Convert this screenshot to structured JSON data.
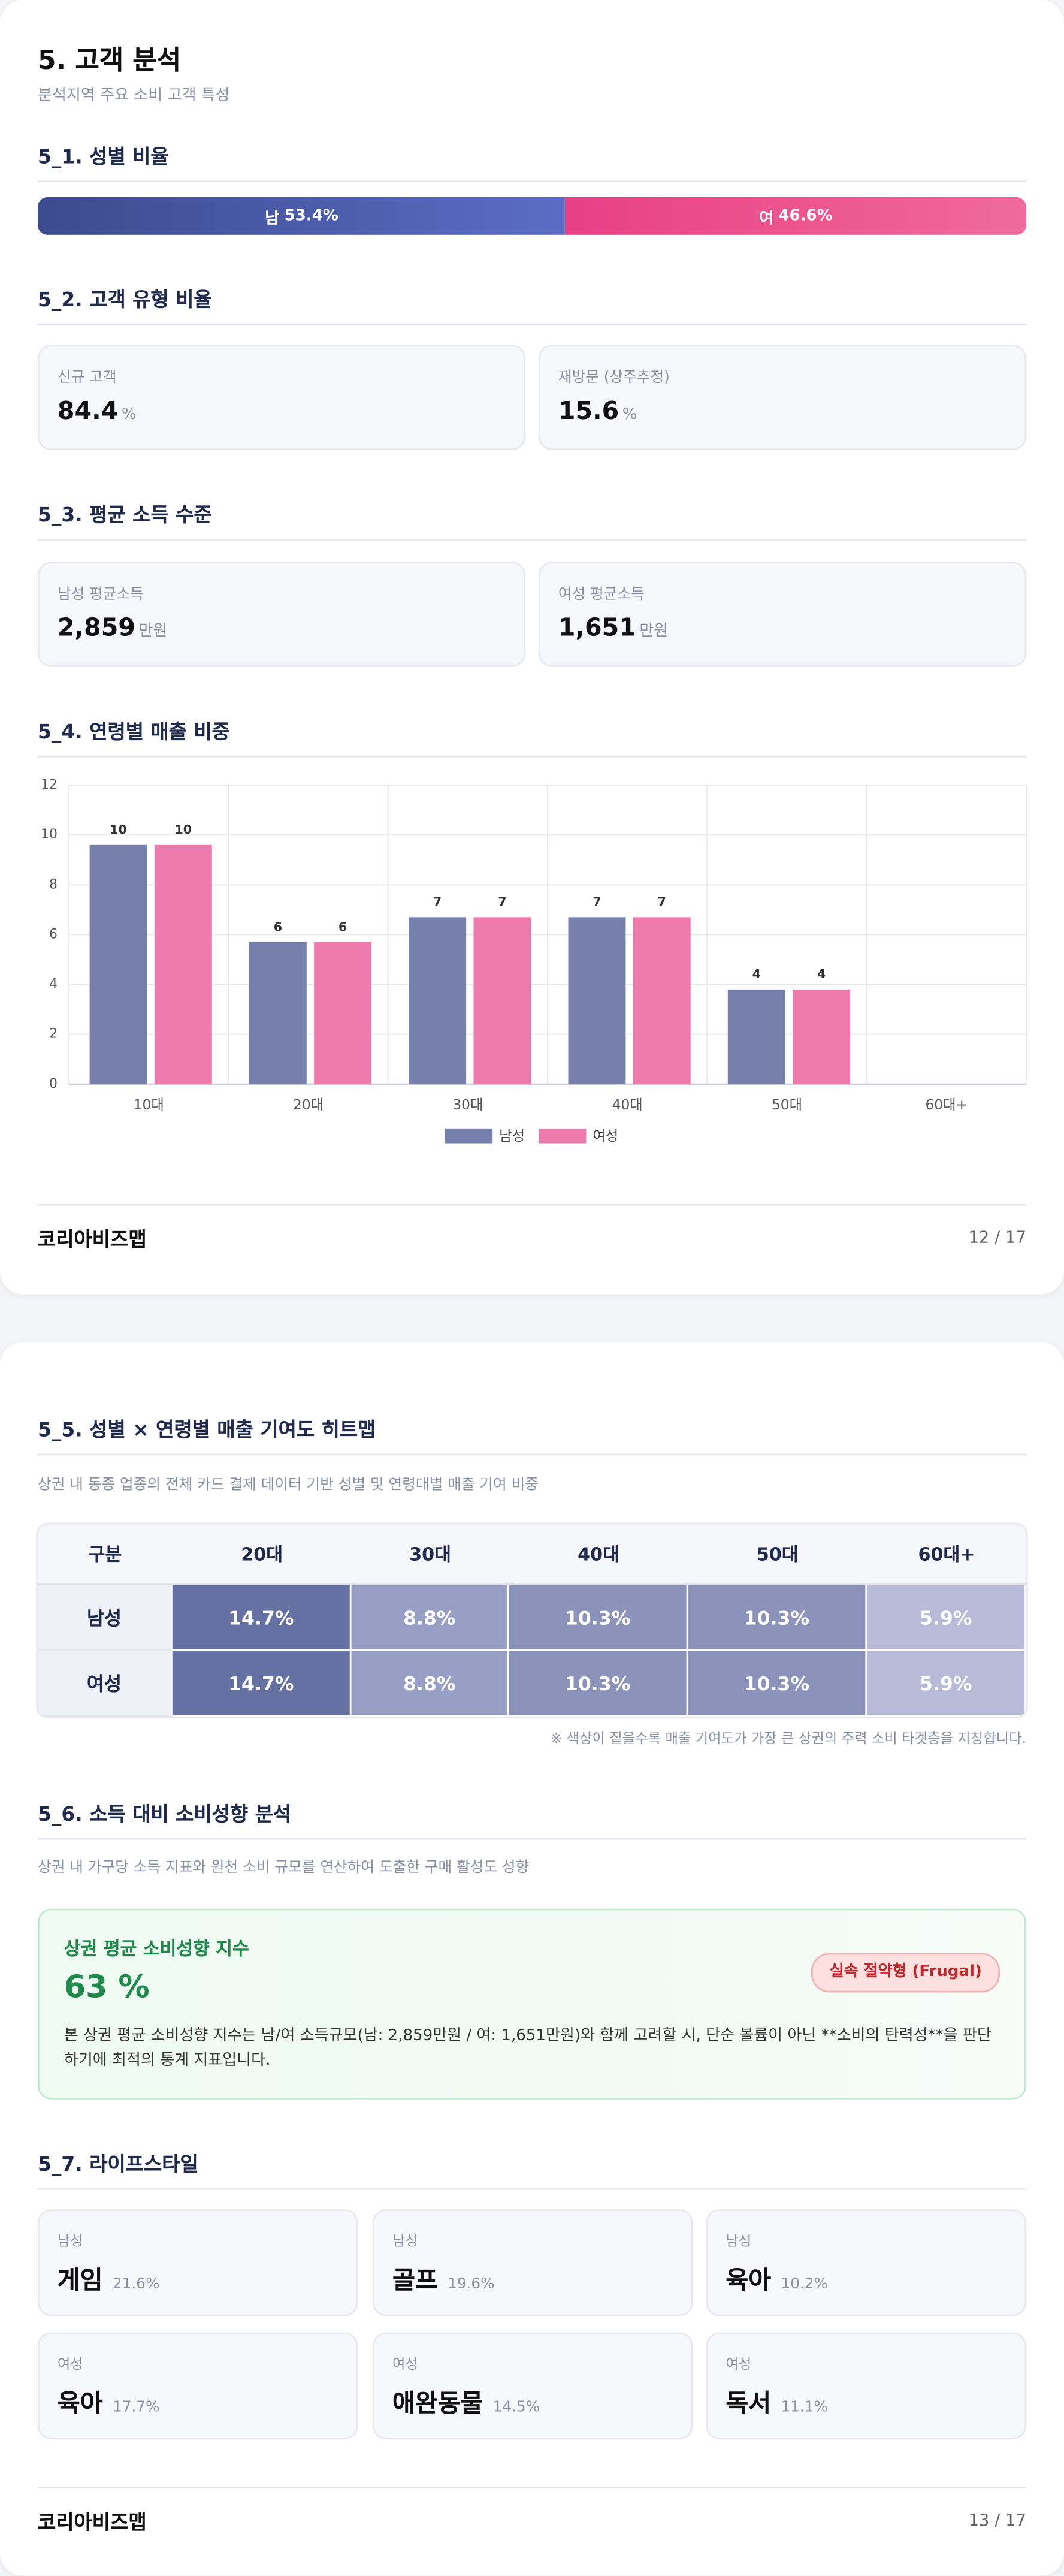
{
  "page1": {
    "title": "5. 고객 분석",
    "subtitle": "분석지역 주요 소비 고객 특성",
    "gender_section": {
      "heading": "5_1. 성별 비율",
      "segments": [
        {
          "label": "남",
          "value": 53.4,
          "value_label": "53.4%"
        },
        {
          "label": "여",
          "value": 46.6,
          "value_label": "46.6%"
        }
      ]
    },
    "customer_type": {
      "heading": "5_2. 고객 유형 비율",
      "cards": [
        {
          "label": "신규 고객",
          "value": 84.4,
          "unit": "%"
        },
        {
          "label": "재방문 (상주추정)",
          "value": 15.6,
          "unit": "%"
        }
      ]
    },
    "income": {
      "heading": "5_3. 평균 소득 수준",
      "cards": [
        {
          "label": "남성 평균소득",
          "value": "2,859",
          "unit": "만원"
        },
        {
          "label": "여성 평균소득",
          "value": "1,651",
          "unit": "만원"
        }
      ]
    },
    "chart_heading": "5_4. 연령별 매출 비중",
    "footer": {
      "brand": "코리아비즈맵",
      "page": "12 / 17"
    }
  },
  "chart_data": {
    "type": "bar",
    "categories": [
      "10대",
      "20대",
      "30대",
      "40대",
      "50대",
      "60대+"
    ],
    "series": [
      {
        "name": "남성",
        "color": "#7780ad",
        "values": [
          9.6,
          5.7,
          6.7,
          6.7,
          3.8,
          null
        ],
        "value_labels": [
          "10",
          "6",
          "7",
          "7",
          "4",
          null
        ]
      },
      {
        "name": "여성",
        "color": "#ec7aaa",
        "values": [
          9.6,
          5.7,
          6.7,
          6.7,
          3.8,
          null
        ],
        "value_labels": [
          "10",
          "6",
          "7",
          "7",
          "4",
          null
        ]
      }
    ],
    "ylim": [
      0,
      12
    ],
    "yticks": [
      0,
      2,
      4,
      6,
      8,
      10,
      12
    ],
    "grid": true,
    "legend": "bottom"
  },
  "page2": {
    "heatmap": {
      "heading": "5_5. 성별 × 연령별 매출 기여도 히트맵",
      "subtitle": "상권 내 동종 업종의 전체 카드 결제 데이터 기반 성별 및 연령대별 매출 기여 비중",
      "columns": [
        "구분",
        "20대",
        "30대",
        "40대",
        "50대",
        "60대+"
      ],
      "rows": [
        [
          "남성",
          "14.7%",
          "8.8%",
          "10.3%",
          "10.3%",
          "5.9%"
        ],
        [
          "여성",
          "14.7%",
          "8.8%",
          "10.3%",
          "10.3%",
          "5.9%"
        ]
      ],
      "note": "※ 색상이 짙을수록 매출 기여도가 가장 큰 상권의 주력 소비 타겟층을 지칭합니다."
    },
    "propensity": {
      "heading": "5_6. 소득 대비 소비성향 분석",
      "subtitle": "상권 내 가구당 소득 지표와 원천 소비 규모를 연산하여 도출한 구매 활성도 성향",
      "card_title": "상권 평균 소비성향 지수",
      "index": "63 %",
      "badge": "실속 절약형 (Frugal)",
      "description": "본 상권 평균 소비성향 지수는 남/여 소득규모(남: 2,859만원 / 여: 1,651만원)와 함께 고려할 시, 단순 볼륨이 아닌 **소비의 탄력성**을 판단하기에 최적의 통계 지표입니다."
    },
    "lifestyle": {
      "heading": "5_7. 라이프스타일",
      "items": [
        {
          "gender": "남성",
          "name": "게임",
          "share": "21.6%"
        },
        {
          "gender": "남성",
          "name": "골프",
          "share": "19.6%"
        },
        {
          "gender": "남성",
          "name": "육아",
          "share": "10.2%"
        },
        {
          "gender": "여성",
          "name": "육아",
          "share": "17.7%"
        },
        {
          "gender": "여성",
          "name": "애완동물",
          "share": "14.5%"
        },
        {
          "gender": "여성",
          "name": "독서",
          "share": "11.1%"
        }
      ]
    },
    "footer": {
      "brand": "코리아비즈맵",
      "page": "13 / 17"
    }
  }
}
